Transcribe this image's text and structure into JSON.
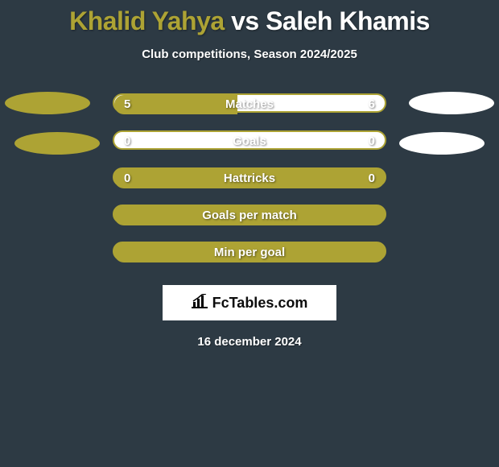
{
  "background_color": "#2d3a44",
  "title": {
    "player1": "Khalid Yahya",
    "vs": "vs",
    "player2": "Saleh Khamis",
    "player1_color": "#ada334",
    "player2_color": "#ffffff",
    "fontsize": 32
  },
  "subtitle": "Club competitions, Season 2024/2025",
  "colors": {
    "player1": "#ada334",
    "player2": "#ffffff",
    "bar_border": "#ada334"
  },
  "rows": [
    {
      "label": "Matches",
      "left_val": "5",
      "right_val": "6",
      "left_num": 5,
      "right_num": 6,
      "show_ellipses": true,
      "show_vals": true,
      "fill_pct": 45.5,
      "fill_color": "#ada334",
      "empty_color": "#ffffff"
    },
    {
      "label": "Goals",
      "left_val": "0",
      "right_val": "0",
      "left_num": 0,
      "right_num": 0,
      "show_ellipses": true,
      "show_vals": true,
      "fill_pct": 0,
      "fill_color": "#ada334",
      "empty_color": "#ffffff",
      "ellipse_style": "offset"
    },
    {
      "label": "Hattricks",
      "left_val": "0",
      "right_val": "0",
      "left_num": 0,
      "right_num": 0,
      "show_ellipses": false,
      "show_vals": true,
      "fill_pct": 100,
      "fill_color": "#ada334",
      "empty_color": "#ada334"
    },
    {
      "label": "Goals per match",
      "left_val": "",
      "right_val": "",
      "show_ellipses": false,
      "show_vals": false,
      "fill_pct": 100,
      "fill_color": "#ada334",
      "empty_color": "#ada334"
    },
    {
      "label": "Min per goal",
      "left_val": "",
      "right_val": "",
      "show_ellipses": false,
      "show_vals": false,
      "fill_pct": 100,
      "fill_color": "#ada334",
      "empty_color": "#ada334"
    }
  ],
  "logo_text": "FcTables.com",
  "date": "16 december 2024"
}
